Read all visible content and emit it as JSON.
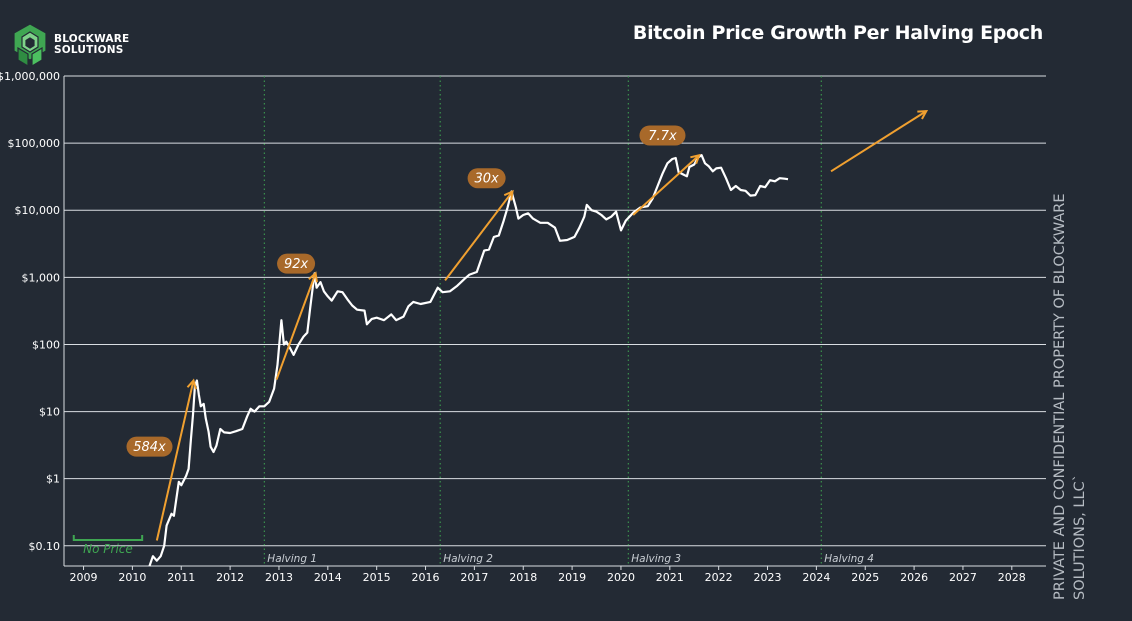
{
  "header": {
    "logo_text_line1": "BLOCKWARE",
    "logo_text_line2": "SOLUTIONS",
    "title": "Bitcoin Price Growth Per Halving Epoch"
  },
  "watermark": "PRIVATE AND CONFIDENTIAL PROPERTY OF BLOCKWARE SOLUTIONS, LLC`",
  "colors": {
    "background": "#232a34",
    "price_line": "#ffffff",
    "arrows": "#f0a030",
    "badge_fill": "#a8692a",
    "halving_lines": "#3fa652",
    "no_price_bracket": "#3fa652",
    "grid": "#d9dde2"
  },
  "chart_data": {
    "type": "line",
    "title": "Bitcoin Price Growth Per Halving Epoch",
    "y_scale": "log",
    "y_range": [
      0.05,
      1000000
    ],
    "x_range": [
      2008.8,
      2028.9
    ],
    "y_ticks": [
      {
        "value": 0.1,
        "label": "$0.10"
      },
      {
        "value": 1,
        "label": "$1"
      },
      {
        "value": 10,
        "label": "$10"
      },
      {
        "value": 100,
        "label": "$100"
      },
      {
        "value": 1000,
        "label": "$1,000"
      },
      {
        "value": 10000,
        "label": "$10,000"
      },
      {
        "value": 100000,
        "label": "$100,000"
      },
      {
        "value": 1000000,
        "label": "$1,000,000"
      }
    ],
    "x_ticks": [
      {
        "value": 2009.2,
        "label": "2009"
      },
      {
        "value": 2010.2,
        "label": "2010"
      },
      {
        "value": 2011.2,
        "label": "2011"
      },
      {
        "value": 2012.2,
        "label": "2012"
      },
      {
        "value": 2013.2,
        "label": "2013"
      },
      {
        "value": 2014.2,
        "label": "2014"
      },
      {
        "value": 2015.2,
        "label": "2015"
      },
      {
        "value": 2016.2,
        "label": "2016"
      },
      {
        "value": 2017.2,
        "label": "2017"
      },
      {
        "value": 2018.2,
        "label": "2018"
      },
      {
        "value": 2019.2,
        "label": "2019"
      },
      {
        "value": 2020.2,
        "label": "2020"
      },
      {
        "value": 2021.2,
        "label": "2021"
      },
      {
        "value": 2022.2,
        "label": "2022"
      },
      {
        "value": 2023.2,
        "label": "2023"
      },
      {
        "value": 2024.2,
        "label": "2024"
      },
      {
        "value": 2025.2,
        "label": "2025"
      },
      {
        "value": 2026.2,
        "label": "2026"
      },
      {
        "value": 2027.2,
        "label": "2027"
      },
      {
        "value": 2028.2,
        "label": "2028"
      }
    ],
    "halvings": [
      {
        "x": 2012.9,
        "label": "Halving 1"
      },
      {
        "x": 2016.5,
        "label": "Halving 2"
      },
      {
        "x": 2020.35,
        "label": "Halving 3"
      },
      {
        "x": 2024.3,
        "label": "Halving 4"
      }
    ],
    "no_price": {
      "x_start": 2009.0,
      "x_end": 2010.4,
      "label": "No Price"
    },
    "series": [
      {
        "points": [
          [
            2010.55,
            0.05
          ],
          [
            2010.62,
            0.07
          ],
          [
            2010.7,
            0.06
          ],
          [
            2010.78,
            0.07
          ],
          [
            2010.85,
            0.1
          ],
          [
            2010.9,
            0.2
          ],
          [
            2011.0,
            0.3
          ],
          [
            2011.05,
            0.28
          ],
          [
            2011.15,
            0.9
          ],
          [
            2011.2,
            0.8
          ],
          [
            2011.3,
            1.1
          ],
          [
            2011.35,
            1.4
          ],
          [
            2011.4,
            4
          ],
          [
            2011.44,
            9
          ],
          [
            2011.48,
            24
          ],
          [
            2011.52,
            29
          ],
          [
            2011.56,
            18
          ],
          [
            2011.6,
            12
          ],
          [
            2011.66,
            13
          ],
          [
            2011.7,
            8
          ],
          [
            2011.76,
            5
          ],
          [
            2011.8,
            3
          ],
          [
            2011.86,
            2.5
          ],
          [
            2011.92,
            3.1
          ],
          [
            2012.0,
            5.5
          ],
          [
            2012.08,
            4.9
          ],
          [
            2012.2,
            4.8
          ],
          [
            2012.32,
            5.1
          ],
          [
            2012.45,
            5.5
          ],
          [
            2012.55,
            8.5
          ],
          [
            2012.62,
            11
          ],
          [
            2012.7,
            10
          ],
          [
            2012.8,
            12
          ],
          [
            2012.9,
            12
          ],
          [
            2013.0,
            14
          ],
          [
            2013.1,
            22
          ],
          [
            2013.17,
            50
          ],
          [
            2013.25,
            230
          ],
          [
            2013.3,
            100
          ],
          [
            2013.35,
            110
          ],
          [
            2013.42,
            90
          ],
          [
            2013.5,
            70
          ],
          [
            2013.6,
            100
          ],
          [
            2013.7,
            130
          ],
          [
            2013.78,
            150
          ],
          [
            2013.84,
            350
          ],
          [
            2013.9,
            800
          ],
          [
            2013.93,
            1150
          ],
          [
            2013.97,
            700
          ],
          [
            2014.05,
            850
          ],
          [
            2014.12,
            620
          ],
          [
            2014.2,
            520
          ],
          [
            2014.28,
            450
          ],
          [
            2014.4,
            620
          ],
          [
            2014.5,
            600
          ],
          [
            2014.6,
            470
          ],
          [
            2014.7,
            380
          ],
          [
            2014.8,
            330
          ],
          [
            2014.95,
            320
          ],
          [
            2015.0,
            200
          ],
          [
            2015.1,
            240
          ],
          [
            2015.2,
            250
          ],
          [
            2015.35,
            230
          ],
          [
            2015.5,
            280
          ],
          [
            2015.6,
            230
          ],
          [
            2015.75,
            260
          ],
          [
            2015.85,
            370
          ],
          [
            2015.95,
            430
          ],
          [
            2016.1,
            400
          ],
          [
            2016.3,
            430
          ],
          [
            2016.45,
            700
          ],
          [
            2016.55,
            600
          ],
          [
            2016.7,
            620
          ],
          [
            2016.85,
            750
          ],
          [
            2017.0,
            950
          ],
          [
            2017.1,
            1100
          ],
          [
            2017.25,
            1200
          ],
          [
            2017.4,
            2500
          ],
          [
            2017.5,
            2600
          ],
          [
            2017.6,
            4000
          ],
          [
            2017.7,
            4200
          ],
          [
            2017.8,
            7000
          ],
          [
            2017.88,
            11000
          ],
          [
            2017.96,
            19000
          ],
          [
            2018.05,
            11000
          ],
          [
            2018.1,
            7500
          ],
          [
            2018.2,
            8500
          ],
          [
            2018.3,
            9000
          ],
          [
            2018.4,
            7500
          ],
          [
            2018.55,
            6500
          ],
          [
            2018.7,
            6500
          ],
          [
            2018.85,
            5500
          ],
          [
            2018.95,
            3500
          ],
          [
            2019.1,
            3600
          ],
          [
            2019.25,
            4000
          ],
          [
            2019.35,
            5500
          ],
          [
            2019.45,
            8000
          ],
          [
            2019.5,
            12000
          ],
          [
            2019.6,
            10000
          ],
          [
            2019.7,
            9500
          ],
          [
            2019.8,
            8500
          ],
          [
            2019.9,
            7300
          ],
          [
            2020.0,
            8000
          ],
          [
            2020.1,
            9500
          ],
          [
            2020.2,
            5000
          ],
          [
            2020.3,
            7000
          ],
          [
            2020.45,
            9200
          ],
          [
            2020.6,
            11000
          ],
          [
            2020.75,
            11500
          ],
          [
            2020.85,
            15000
          ],
          [
            2020.95,
            23000
          ],
          [
            2021.05,
            35000
          ],
          [
            2021.15,
            50000
          ],
          [
            2021.25,
            58000
          ],
          [
            2021.32,
            60000
          ],
          [
            2021.38,
            37000
          ],
          [
            2021.48,
            34000
          ],
          [
            2021.55,
            32000
          ],
          [
            2021.6,
            44000
          ],
          [
            2021.7,
            48000
          ],
          [
            2021.78,
            61000
          ],
          [
            2021.85,
            66000
          ],
          [
            2021.92,
            50000
          ],
          [
            2022.0,
            45000
          ],
          [
            2022.08,
            38000
          ],
          [
            2022.15,
            42000
          ],
          [
            2022.25,
            43000
          ],
          [
            2022.35,
            30000
          ],
          [
            2022.45,
            20000
          ],
          [
            2022.55,
            23000
          ],
          [
            2022.65,
            20000
          ],
          [
            2022.75,
            19500
          ],
          [
            2022.85,
            16500
          ],
          [
            2022.95,
            16800
          ],
          [
            2023.05,
            23000
          ],
          [
            2023.15,
            22000
          ],
          [
            2023.25,
            28000
          ],
          [
            2023.35,
            27000
          ],
          [
            2023.45,
            30000
          ],
          [
            2023.55,
            29500
          ],
          [
            2023.62,
            29000
          ]
        ]
      }
    ],
    "annotations": [
      {
        "label": "584x",
        "arrow_from": [
          2010.7,
          0.12
        ],
        "arrow_to": [
          2011.45,
          29
        ],
        "badge_at": [
          2010.55,
          3
        ]
      },
      {
        "label": "92x",
        "arrow_from": [
          2013.15,
          30
        ],
        "arrow_to": [
          2013.95,
          1150
        ],
        "badge_at": [
          2013.55,
          1600
        ]
      },
      {
        "label": "30x",
        "arrow_from": [
          2016.6,
          900
        ],
        "arrow_to": [
          2017.98,
          19000
        ],
        "badge_at": [
          2017.45,
          30000
        ]
      },
      {
        "label": "7.7x",
        "arrow_from": [
          2020.45,
          8500
        ],
        "arrow_to": [
          2021.8,
          66000
        ],
        "badge_at": [
          2021.05,
          130000
        ]
      },
      {
        "label": "",
        "arrow_from": [
          2024.5,
          38000
        ],
        "arrow_to": [
          2026.45,
          300000
        ],
        "badge_at": null
      }
    ]
  }
}
